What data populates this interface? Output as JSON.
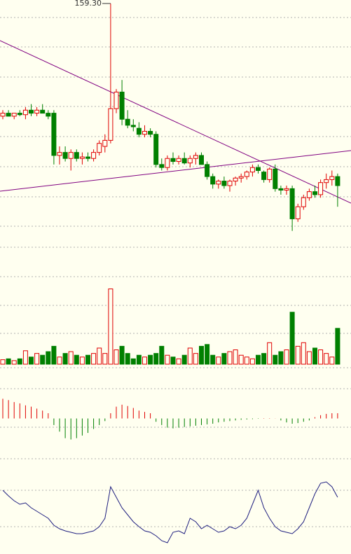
{
  "chart_data": {
    "type": "candlestick",
    "annotation": "159.30",
    "ylim": [
      70,
      160.5
    ],
    "open": [
      122,
      123,
      122,
      123,
      122.5,
      124,
      123,
      124,
      123,
      123,
      109,
      110,
      108,
      110,
      108,
      108.5,
      108,
      110,
      112,
      114,
      124.5,
      130,
      121,
      119,
      118,
      116,
      117,
      116,
      106,
      105,
      108,
      107,
      108,
      106.5,
      108,
      109,
      106,
      102,
      99.5,
      100.5,
      99,
      100.5,
      101.5,
      102,
      103.5,
      105,
      103.5,
      101,
      104.5,
      98,
      97.5,
      98,
      88,
      92,
      95,
      97,
      96,
      100,
      101,
      102
    ],
    "high": [
      124,
      124,
      123,
      124,
      125,
      126,
      125,
      126,
      124,
      124,
      112,
      112,
      111,
      111,
      110,
      110,
      111,
      114,
      116,
      159.3,
      131,
      134,
      124,
      121,
      120,
      119,
      118,
      117,
      108,
      109,
      110,
      109,
      110,
      109,
      110,
      110,
      107,
      103,
      101,
      102,
      101,
      102,
      103,
      104,
      106,
      106,
      104,
      105,
      106,
      99,
      99,
      99,
      93,
      96,
      98,
      99,
      101,
      103,
      104,
      103
    ],
    "low": [
      121,
      122,
      121,
      122,
      121,
      122,
      122,
      123,
      121,
      106,
      106,
      107,
      104,
      107,
      106,
      107,
      107,
      109,
      110,
      113,
      123,
      119,
      118,
      117,
      115,
      115,
      115,
      105,
      104,
      104,
      106,
      106,
      106,
      105,
      106,
      106,
      101,
      98,
      98,
      98,
      97,
      99,
      100,
      101,
      102,
      103,
      100,
      100,
      97,
      96,
      96,
      84,
      87,
      91,
      94,
      95,
      95,
      98,
      99,
      92
    ],
    "close": [
      123,
      122,
      123,
      122.5,
      124,
      123,
      124,
      123,
      122,
      109,
      110,
      108,
      110,
      108,
      108.5,
      108,
      110,
      113,
      114,
      124.5,
      130,
      121,
      119,
      118.5,
      116,
      117,
      116,
      106,
      105,
      108,
      107,
      108,
      106.5,
      108,
      109,
      106,
      102,
      99.5,
      100.5,
      99,
      100.5,
      101.5,
      102,
      103.5,
      105,
      104,
      101,
      104.5,
      98,
      97.5,
      98,
      88,
      92,
      95,
      97,
      96,
      100,
      101,
      102,
      99
    ],
    "volume": {
      "ylim": [
        0,
        100
      ],
      "values": [
        5,
        6,
        4,
        6,
        15,
        8,
        12,
        10,
        14,
        20,
        8,
        12,
        14,
        10,
        8,
        10,
        12,
        18,
        12,
        84,
        16,
        20,
        12,
        6,
        10,
        8,
        10,
        12,
        20,
        10,
        8,
        6,
        10,
        18,
        12,
        20,
        22,
        10,
        8,
        12,
        14,
        16,
        10,
        8,
        6,
        10,
        12,
        24,
        10,
        14,
        16,
        58,
        20,
        24,
        14,
        18,
        16,
        12,
        8,
        40
      ]
    },
    "macd": {
      "ylim": [
        -4,
        4
      ],
      "values": [
        3,
        2.8,
        2.5,
        2.3,
        2,
        1.8,
        1.5,
        1.2,
        0.8,
        -1,
        -2,
        -3,
        -3.2,
        -3,
        -2.6,
        -2.2,
        -1.6,
        -1,
        -0.4,
        0.8,
        1.8,
        2.1,
        1.9,
        1.6,
        1.2,
        1,
        0.8,
        -0.5,
        -1,
        -1.4,
        -1.5,
        -1.4,
        -1.3,
        -1.2,
        -1.1,
        -1,
        -0.9,
        -0.8,
        -0.6,
        -0.5,
        -0.4,
        -0.3,
        -0.2,
        -0.15,
        -0.1,
        -0.05,
        0.05,
        0.05,
        0.02,
        -0.3,
        -0.6,
        -0.8,
        -0.7,
        -0.5,
        -0.3,
        0.2,
        0.5,
        0.7,
        0.8,
        0.8
      ]
    },
    "kdj": {
      "ylim": [
        0,
        100
      ],
      "color": "#202080",
      "values": [
        80,
        72,
        65,
        60,
        62,
        55,
        50,
        45,
        40,
        30,
        25,
        22,
        20,
        18,
        18,
        20,
        22,
        28,
        40,
        85,
        70,
        55,
        45,
        35,
        28,
        22,
        20,
        15,
        8,
        5,
        20,
        22,
        18,
        40,
        35,
        25,
        30,
        25,
        20,
        22,
        28,
        25,
        30,
        40,
        60,
        80,
        55,
        40,
        28,
        22,
        20,
        18,
        25,
        35,
        55,
        75,
        90,
        92,
        85,
        70
      ]
    }
  }
}
